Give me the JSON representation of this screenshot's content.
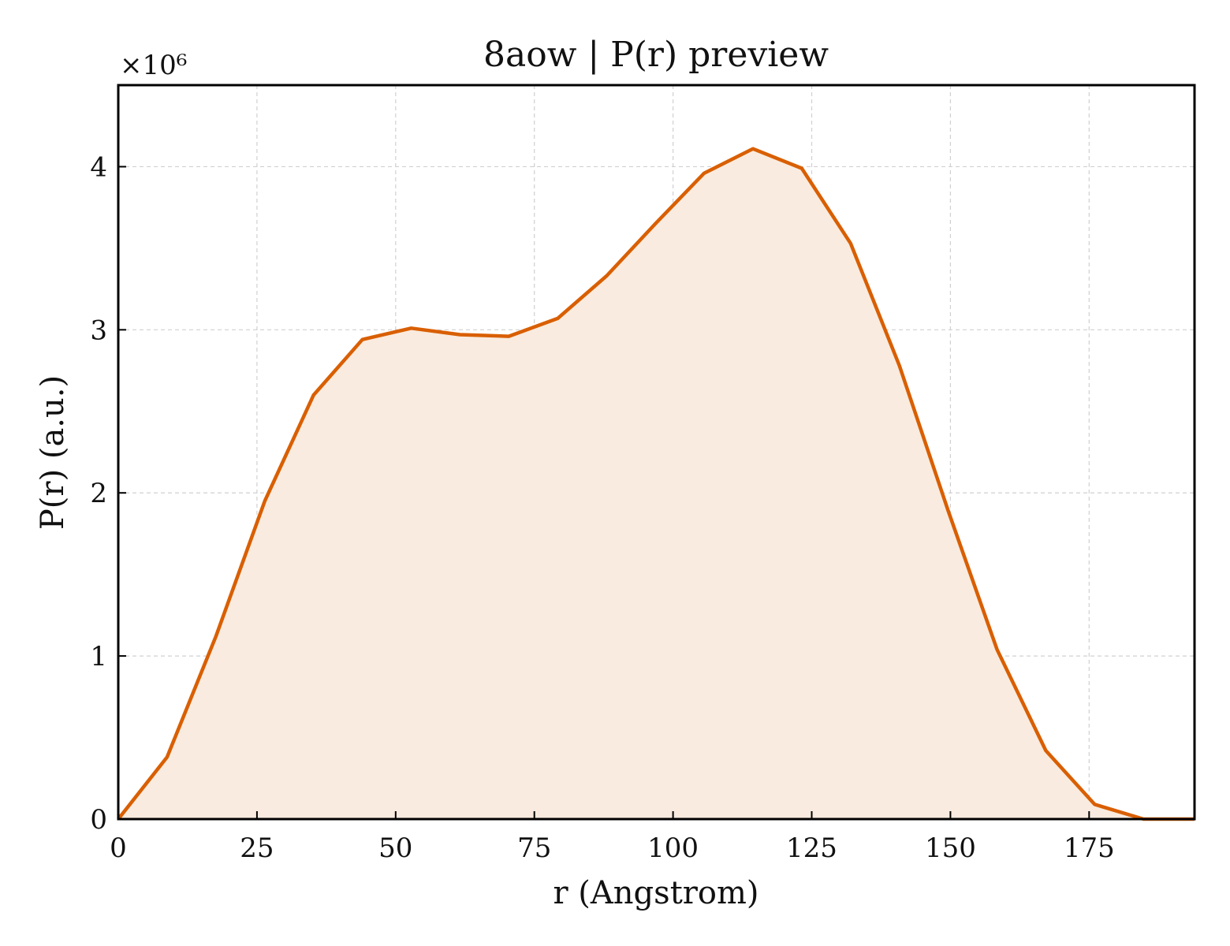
{
  "chart_data": {
    "type": "area",
    "title": "8aow | P(r) preview",
    "xlabel": "r (Angstrom)",
    "ylabel": "P(r) (a.u.)",
    "y_scale_label": "×10⁶",
    "xlim": [
      0,
      194
    ],
    "ylim": [
      0,
      4.5
    ],
    "xticks": [
      0,
      25,
      50,
      75,
      100,
      125,
      150,
      175
    ],
    "yticks": [
      0,
      1,
      2,
      3,
      4
    ],
    "grid": true,
    "line_color": "#d95f02",
    "fill_color": "#f9ebdf",
    "series": [
      {
        "x": [
          0,
          8.8,
          17.6,
          26.4,
          35.2,
          44.0,
          52.8,
          61.6,
          70.4,
          79.2,
          88.0,
          96.8,
          105.6,
          114.4,
          123.2,
          132.0,
          140.8,
          149.6,
          158.4,
          167.2,
          176.0,
          184.8,
          194.0
        ],
        "y": [
          0,
          0.38,
          1.12,
          1.95,
          2.6,
          2.94,
          3.01,
          2.97,
          2.96,
          3.07,
          3.33,
          3.65,
          3.96,
          4.11,
          3.99,
          3.53,
          2.78,
          1.89,
          1.04,
          0.42,
          0.09,
          0.0,
          0.0
        ]
      }
    ]
  }
}
